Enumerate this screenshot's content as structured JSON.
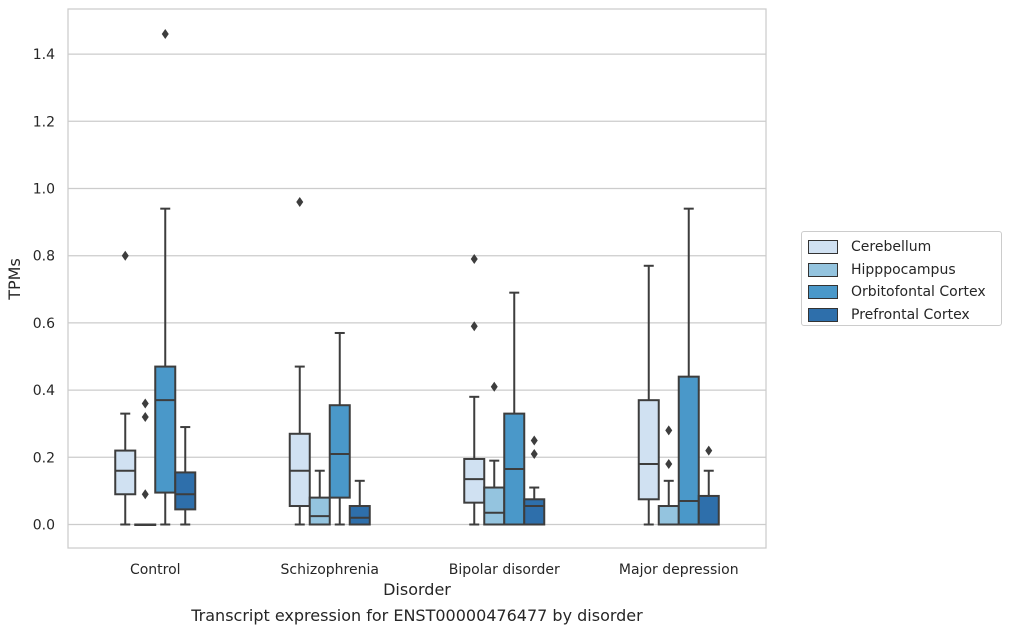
{
  "caption": "Transcript expression for ENST00000476477 by disorder",
  "chart_data": {
    "type": "boxplot",
    "xlabel": "Disorder",
    "ylabel": "TPMs",
    "ylim": [
      -0.07,
      1.54
    ],
    "yticks": [
      "0.0",
      "0.2",
      "0.4",
      "0.6",
      "0.8",
      "1.0",
      "1.2",
      "1.4"
    ],
    "categories": [
      "Control",
      "Schizophrenia",
      "Bipolar disorder",
      "Major depression"
    ],
    "grid": true,
    "legend_position": "right",
    "series": [
      {
        "name": "Cerebellum",
        "color": "#d0e1f2",
        "boxes": [
          {
            "whisker_low": 0.0,
            "q1": 0.09,
            "median": 0.16,
            "q3": 0.22,
            "whisker_high": 0.33,
            "outliers": [
              0.8
            ]
          },
          {
            "whisker_low": 0.0,
            "q1": 0.055,
            "median": 0.16,
            "q3": 0.27,
            "whisker_high": 0.47,
            "outliers": [
              0.96
            ]
          },
          {
            "whisker_low": 0.0,
            "q1": 0.065,
            "median": 0.135,
            "q3": 0.195,
            "whisker_high": 0.38,
            "outliers": [
              0.59,
              0.79
            ]
          },
          {
            "whisker_low": 0.0,
            "q1": 0.075,
            "median": 0.18,
            "q3": 0.37,
            "whisker_high": 0.77,
            "outliers": []
          }
        ]
      },
      {
        "name": "Hipppocampus",
        "color": "#94c4df",
        "boxes": [
          {
            "whisker_low": 0.0,
            "q1": 0.0,
            "median": 0.0,
            "q3": 0.0,
            "whisker_high": 0.0,
            "outliers": [
              0.09,
              0.32,
              0.36
            ]
          },
          {
            "whisker_low": 0.0,
            "q1": 0.0,
            "median": 0.025,
            "q3": 0.08,
            "whisker_high": 0.16,
            "outliers": []
          },
          {
            "whisker_low": 0.0,
            "q1": 0.0,
            "median": 0.035,
            "q3": 0.11,
            "whisker_high": 0.19,
            "outliers": [
              0.41
            ]
          },
          {
            "whisker_low": 0.0,
            "q1": 0.0,
            "median": 0.0,
            "q3": 0.055,
            "whisker_high": 0.13,
            "outliers": [
              0.18,
              0.28
            ]
          }
        ]
      },
      {
        "name": "Orbitofontal Cortex",
        "color": "#4a98c9",
        "boxes": [
          {
            "whisker_low": 0.0,
            "q1": 0.095,
            "median": 0.37,
            "q3": 0.47,
            "whisker_high": 0.94,
            "outliers": [
              1.46
            ]
          },
          {
            "whisker_low": 0.0,
            "q1": 0.08,
            "median": 0.21,
            "q3": 0.355,
            "whisker_high": 0.57,
            "outliers": []
          },
          {
            "whisker_low": 0.0,
            "q1": 0.0,
            "median": 0.165,
            "q3": 0.33,
            "whisker_high": 0.69,
            "outliers": []
          },
          {
            "whisker_low": 0.0,
            "q1": 0.0,
            "median": 0.07,
            "q3": 0.44,
            "whisker_high": 0.94,
            "outliers": []
          }
        ]
      },
      {
        "name": "Prefrontal Cortex",
        "color": "#2e6fab",
        "boxes": [
          {
            "whisker_low": 0.0,
            "q1": 0.045,
            "median": 0.09,
            "q3": 0.155,
            "whisker_high": 0.29,
            "outliers": []
          },
          {
            "whisker_low": 0.0,
            "q1": 0.0,
            "median": 0.02,
            "q3": 0.055,
            "whisker_high": 0.13,
            "outliers": []
          },
          {
            "whisker_low": 0.0,
            "q1": 0.0,
            "median": 0.055,
            "q3": 0.075,
            "whisker_high": 0.11,
            "outliers": [
              0.21,
              0.25
            ]
          },
          {
            "whisker_low": 0.0,
            "q1": 0.0,
            "median": 0.0,
            "q3": 0.085,
            "whisker_high": 0.16,
            "outliers": [
              0.22
            ]
          }
        ]
      }
    ]
  }
}
